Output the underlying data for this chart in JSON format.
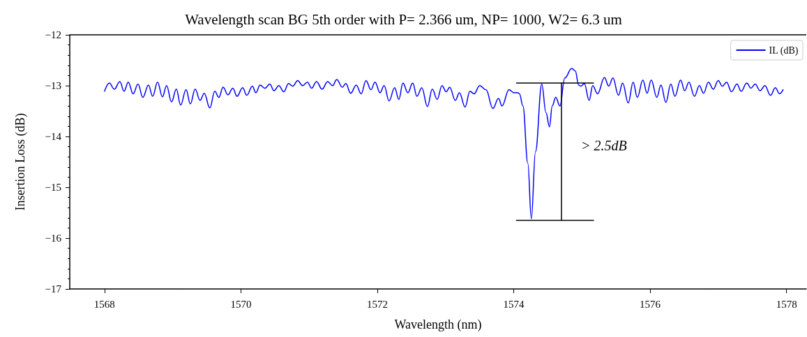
{
  "chart_data": {
    "type": "line",
    "title": "Wavelength scan BG 5th order with P= 2.366 um, NP= 1000, W2= 6.3 um",
    "xlabel": "Wavelength (nm)",
    "ylabel": "Insertion Loss (dB)",
    "xlim": [
      1567.49,
      1578.29
    ],
    "xticks": [
      1568,
      1570,
      1572,
      1574,
      1576,
      1578
    ],
    "ylim": [
      -17,
      -12
    ],
    "yticks": [
      -17,
      -16,
      -15,
      -14,
      -13,
      -12
    ],
    "grid": false,
    "legend": "top right",
    "marker": "none",
    "line_style": "solid",
    "annotations": [
      "> 2.5dB"
    ],
    "series": [
      {
        "name": "IL (dB)",
        "color": "#0000ff",
        "x": [
          1568.0,
          1568.072,
          1568.143,
          1568.225,
          1568.286,
          1568.348,
          1568.419,
          1568.491,
          1568.562,
          1568.644,
          1568.706,
          1568.777,
          1568.849,
          1568.91,
          1568.982,
          1569.053,
          1569.115,
          1569.196,
          1569.258,
          1569.329,
          1569.401,
          1569.462,
          1569.544,
          1569.616,
          1569.677,
          1569.738,
          1569.81,
          1569.881,
          1569.943,
          1570.025,
          1570.086,
          1570.168,
          1570.219,
          1570.28,
          1570.352,
          1570.423,
          1570.485,
          1570.556,
          1570.628,
          1570.699,
          1570.761,
          1570.832,
          1570.904,
          1570.975,
          1571.037,
          1571.108,
          1571.19,
          1571.272,
          1571.344,
          1571.405,
          1571.487,
          1571.538,
          1571.609,
          1571.691,
          1571.763,
          1571.834,
          1571.906,
          1571.967,
          1572.039,
          1572.1,
          1572.172,
          1572.254,
          1572.315,
          1572.376,
          1572.448,
          1572.519,
          1572.581,
          1572.652,
          1572.734,
          1572.806,
          1572.877,
          1572.949,
          1573.01,
          1573.061,
          1573.143,
          1573.204,
          1573.286,
          1573.358,
          1573.419,
          1573.501,
          1573.593,
          1573.695,
          1573.777,
          1573.828,
          1573.931,
          1574.002,
          1574.063,
          1574.084,
          1574.135,
          1574.207,
          1574.258,
          1574.319,
          1574.411,
          1574.473,
          1574.524,
          1574.564,
          1574.616,
          1574.677,
          1574.749,
          1574.851,
          1574.902,
          1574.953,
          1574.984,
          1575.035,
          1575.106,
          1575.158,
          1575.229,
          1575.331,
          1575.393,
          1575.454,
          1575.536,
          1575.597,
          1575.679,
          1575.751,
          1575.812,
          1575.894,
          1575.955,
          1576.016,
          1576.098,
          1576.159,
          1576.231,
          1576.303,
          1576.364,
          1576.446,
          1576.507,
          1576.569,
          1576.65,
          1576.722,
          1576.783,
          1576.855,
          1576.926,
          1576.998,
          1577.059,
          1577.121,
          1577.192,
          1577.274,
          1577.335,
          1577.417,
          1577.479,
          1577.54,
          1577.612,
          1577.683,
          1577.765,
          1577.836,
          1577.898,
          1577.949
        ],
        "values": [
          -13.11,
          -12.95,
          -13.07,
          -12.92,
          -13.11,
          -12.93,
          -13.16,
          -12.97,
          -13.23,
          -12.99,
          -13.21,
          -12.93,
          -13.22,
          -13.0,
          -13.32,
          -13.07,
          -13.38,
          -13.08,
          -13.36,
          -13.07,
          -13.29,
          -13.15,
          -13.44,
          -13.11,
          -13.23,
          -13.03,
          -13.18,
          -13.05,
          -13.21,
          -13.04,
          -13.19,
          -13.01,
          -13.14,
          -12.99,
          -13.05,
          -12.97,
          -13.1,
          -13.0,
          -13.12,
          -12.96,
          -13.01,
          -12.9,
          -13.0,
          -12.93,
          -13.05,
          -12.92,
          -13.07,
          -12.92,
          -13.0,
          -12.88,
          -13.03,
          -12.96,
          -13.15,
          -12.99,
          -13.16,
          -12.9,
          -13.08,
          -12.93,
          -13.14,
          -13.0,
          -13.3,
          -13.04,
          -13.27,
          -12.95,
          -13.14,
          -12.95,
          -13.21,
          -13.04,
          -13.41,
          -13.07,
          -13.27,
          -13.0,
          -13.12,
          -13.03,
          -13.29,
          -13.14,
          -13.42,
          -13.11,
          -13.16,
          -13.0,
          -13.08,
          -13.45,
          -13.25,
          -13.4,
          -13.08,
          -13.14,
          -13.14,
          -13.16,
          -13.4,
          -14.53,
          -15.62,
          -14.3,
          -12.97,
          -13.53,
          -13.81,
          -13.4,
          -13.23,
          -13.4,
          -12.85,
          -12.66,
          -12.71,
          -12.99,
          -13.01,
          -12.96,
          -13.29,
          -13.0,
          -13.16,
          -12.84,
          -13.01,
          -12.85,
          -13.19,
          -12.95,
          -13.34,
          -12.93,
          -13.23,
          -12.89,
          -13.15,
          -12.89,
          -13.23,
          -12.99,
          -13.33,
          -12.97,
          -13.21,
          -12.89,
          -13.1,
          -12.93,
          -13.21,
          -13.0,
          -13.15,
          -12.93,
          -13.07,
          -12.9,
          -13.01,
          -12.93,
          -13.12,
          -12.97,
          -13.11,
          -12.95,
          -13.05,
          -12.97,
          -13.1,
          -13.0,
          -13.19,
          -13.04,
          -13.16,
          -13.08
        ]
      },
      {
        "type": "line",
        "color": "#000000",
        "x": [
          1574.04,
          1575.17
        ],
        "values": [
          -12.95,
          -12.95
        ]
      },
      {
        "type": "line",
        "color": "#000000",
        "x": [
          1574.7,
          1574.7
        ],
        "values": [
          -12.95,
          -15.65
        ]
      },
      {
        "type": "line",
        "color": "#000000",
        "x": [
          1574.04,
          1575.17
        ],
        "values": [
          -15.65,
          -15.65
        ]
      }
    ]
  }
}
